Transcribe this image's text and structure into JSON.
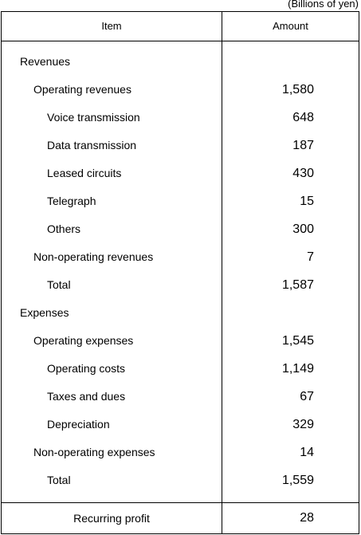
{
  "unit_label": "(Billions of yen)",
  "header": {
    "item": "Item",
    "amount": "Amount"
  },
  "rows": [
    {
      "label": "Revenues",
      "amount": "",
      "level": 0
    },
    {
      "label": "Operating revenues",
      "amount": "1,580",
      "level": 1
    },
    {
      "label": "Voice transmission",
      "amount": "648",
      "level": 2
    },
    {
      "label": "Data transmission",
      "amount": "187",
      "level": 2
    },
    {
      "label": "Leased circuits",
      "amount": "430",
      "level": 2
    },
    {
      "label": "Telegraph",
      "amount": "15",
      "level": 2
    },
    {
      "label": "Others",
      "amount": "300",
      "level": 2
    },
    {
      "label": "Non-operating revenues",
      "amount": "7",
      "level": 1
    },
    {
      "label": "Total",
      "amount": "1,587",
      "level": 2
    },
    {
      "label": "Expenses",
      "amount": "",
      "level": 0
    },
    {
      "label": "Operating expenses",
      "amount": "1,545",
      "level": 1
    },
    {
      "label": "Operating costs",
      "amount": "1,149",
      "level": 2
    },
    {
      "label": "Taxes and dues",
      "amount": "67",
      "level": 2
    },
    {
      "label": "Depreciation",
      "amount": "329",
      "level": 2
    },
    {
      "label": "Non-operating expenses",
      "amount": "14",
      "level": 1
    },
    {
      "label": "Total",
      "amount": "1,559",
      "level": 2
    }
  ],
  "footer": {
    "label": "Recurring profit",
    "amount": "28"
  }
}
